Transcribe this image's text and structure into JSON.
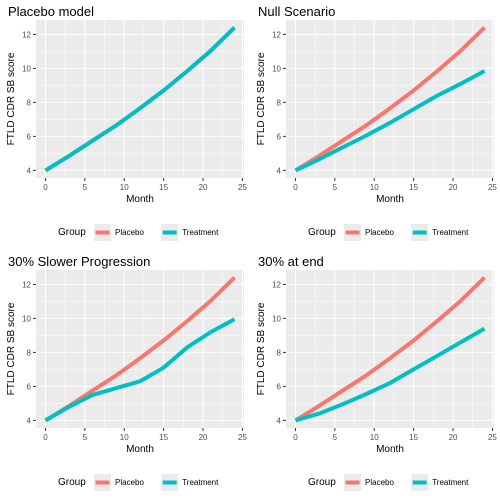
{
  "colors": {
    "placebo": "#F8766D",
    "treatment": "#00BFC4",
    "panel_bg": "#EBEBEB",
    "grid_major": "#FFFFFF"
  },
  "chart_data": [
    {
      "type": "line",
      "title": "Placebo model",
      "xlabel": "Month",
      "ylabel": "FTLD CDR SB score",
      "xlim": [
        0,
        24
      ],
      "ylim": [
        4,
        12.4
      ],
      "x_ticks": [
        0,
        5,
        10,
        15,
        20,
        25
      ],
      "y_ticks": [
        4,
        6,
        8,
        10,
        12
      ],
      "grid": true,
      "legend": {
        "title": "Group",
        "position": "bottom"
      },
      "x": [
        0,
        3,
        6,
        9,
        12,
        15,
        18,
        21,
        24
      ],
      "series": [
        {
          "name": "Placebo",
          "color": "#F8766D",
          "values": [
            4.0,
            4.85,
            5.75,
            6.65,
            7.65,
            8.7,
            9.85,
            11.05,
            12.4
          ]
        },
        {
          "name": "Treatment",
          "color": "#00BFC4",
          "values": [
            4.0,
            4.85,
            5.75,
            6.65,
            7.65,
            8.7,
            9.85,
            11.05,
            12.4
          ]
        }
      ]
    },
    {
      "type": "line",
      "title": "Null Scenario",
      "xlabel": "Month",
      "ylabel": "FTLD CDR SB score",
      "xlim": [
        0,
        24
      ],
      "ylim": [
        4,
        12.4
      ],
      "x_ticks": [
        0,
        5,
        10,
        15,
        20,
        25
      ],
      "y_ticks": [
        4,
        6,
        8,
        10,
        12
      ],
      "grid": true,
      "legend": {
        "title": "Group",
        "position": "bottom"
      },
      "x": [
        0,
        3,
        6,
        9,
        12,
        15,
        18,
        21,
        24
      ],
      "series": [
        {
          "name": "Placebo",
          "color": "#F8766D",
          "values": [
            4.0,
            4.85,
            5.75,
            6.65,
            7.65,
            8.7,
            9.85,
            11.05,
            12.4
          ]
        },
        {
          "name": "Treatment",
          "color": "#00BFC4",
          "values": [
            4.0,
            4.65,
            5.35,
            6.05,
            6.8,
            7.6,
            8.4,
            9.1,
            9.85
          ]
        }
      ]
    },
    {
      "type": "line",
      "title": "30% Slower Progression",
      "xlabel": "Month",
      "ylabel": "FTLD CDR SB score",
      "xlim": [
        0,
        24
      ],
      "ylim": [
        4,
        12.4
      ],
      "x_ticks": [
        0,
        5,
        10,
        15,
        20,
        25
      ],
      "y_ticks": [
        4,
        6,
        8,
        10,
        12
      ],
      "grid": true,
      "legend": {
        "title": "Group",
        "position": "bottom"
      },
      "x": [
        0,
        3,
        6,
        9,
        12,
        15,
        18,
        21,
        24
      ],
      "series": [
        {
          "name": "Placebo",
          "color": "#F8766D",
          "values": [
            4.0,
            4.85,
            5.75,
            6.65,
            7.65,
            8.7,
            9.85,
            11.05,
            12.4
          ]
        },
        {
          "name": "Treatment",
          "color": "#00BFC4",
          "values": [
            4.0,
            4.8,
            5.5,
            5.9,
            6.3,
            7.1,
            8.3,
            9.2,
            9.95
          ]
        }
      ]
    },
    {
      "type": "line",
      "title": "30% at end",
      "xlabel": "Month",
      "ylabel": "FTLD CDR SB score",
      "xlim": [
        0,
        24
      ],
      "ylim": [
        4,
        12.4
      ],
      "x_ticks": [
        0,
        5,
        10,
        15,
        20,
        25
      ],
      "y_ticks": [
        4,
        6,
        8,
        10,
        12
      ],
      "grid": true,
      "legend": {
        "title": "Group",
        "position": "bottom"
      },
      "x": [
        0,
        3,
        6,
        9,
        12,
        15,
        18,
        21,
        24
      ],
      "series": [
        {
          "name": "Placebo",
          "color": "#F8766D",
          "values": [
            4.0,
            4.85,
            5.75,
            6.65,
            7.65,
            8.7,
            9.85,
            11.05,
            12.4
          ]
        },
        {
          "name": "Treatment",
          "color": "#00BFC4",
          "values": [
            4.0,
            4.4,
            4.95,
            5.55,
            6.2,
            7.0,
            7.8,
            8.6,
            9.4
          ]
        }
      ]
    }
  ]
}
